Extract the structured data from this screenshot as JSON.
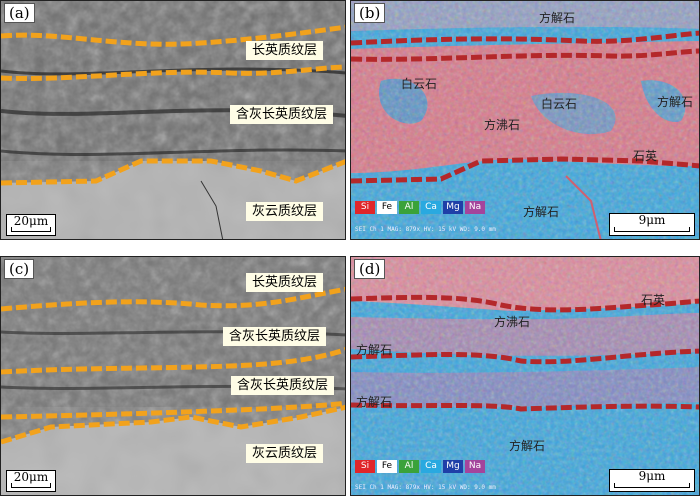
{
  "panels": {
    "a": {
      "label": "(a)",
      "layers": [
        "长英质纹层",
        "含灰长英质纹层",
        "灰云质纹层"
      ],
      "scale": "20μm"
    },
    "b": {
      "label": "(b)",
      "minerals": [
        "方解石",
        "白云石",
        "白云石",
        "方解石",
        "方沸石",
        "石英",
        "方解石"
      ],
      "scale": "9μm",
      "legend": [
        "Si",
        "Fe",
        "Al",
        "Ca",
        "Mg",
        "Na"
      ],
      "info": "SEI  Ch 1   MAG: 879x    HV: 15 kV    WD: 9.0 mm"
    },
    "c": {
      "label": "(c)",
      "layers": [
        "长英质纹层",
        "含灰长英质纹层",
        "含灰长英质纹层",
        "灰云质纹层"
      ],
      "scale": "20μm"
    },
    "d": {
      "label": "(d)",
      "minerals": [
        "石英",
        "方沸石",
        "方解石",
        "方解石",
        "方解石"
      ],
      "scale": "9μm",
      "legend": [
        "Si",
        "Fe",
        "Al",
        "Ca",
        "Mg",
        "Na"
      ],
      "info": "SEI  Ch 1   MAG: 879x    HV: 15 kV    WD: 9.0 mm"
    }
  },
  "colors": {
    "orange_boundary": "#f2a21c",
    "red_boundary": "#b4282a",
    "legend": {
      "Si": "#e0262a",
      "Fe": "#ffffff",
      "Al": "#3aa23a",
      "Ca": "#29a9e0",
      "Mg": "#1f3fa8",
      "Na": "#a4449c"
    }
  }
}
